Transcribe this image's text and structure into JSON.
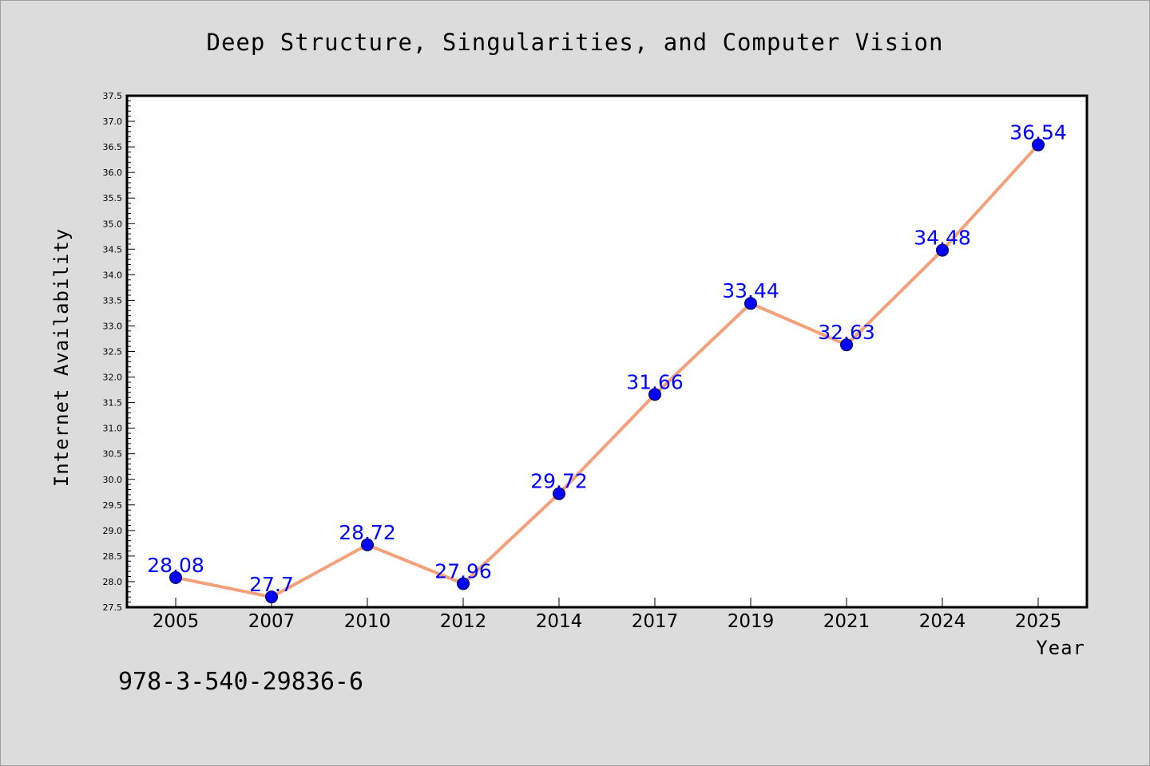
{
  "chart_data": {
    "type": "line",
    "title": "Deep Structure, Singularities, and Computer Vision",
    "xlabel": "Year",
    "ylabel": "Internet Availability",
    "categories": [
      "2005",
      "2007",
      "2010",
      "2012",
      "2014",
      "2017",
      "2019",
      "2021",
      "2024",
      "2025"
    ],
    "series": [
      {
        "values": [
          28.08,
          27.7,
          28.72,
          27.96,
          29.72,
          31.66,
          33.44,
          32.63,
          34.48,
          36.54
        ]
      }
    ],
    "data_labels": [
      "28.08",
      "27.7",
      "28.72",
      "27.96",
      "29.72",
      "31.66",
      "33.44",
      "32.63",
      "34.48",
      "36.54"
    ],
    "ylim": [
      27.5,
      37.5
    ],
    "ytick_labels": [
      "27.5",
      "28.0",
      "28.5",
      "29.0",
      "29.5",
      "30.0",
      "30.5",
      "31.0",
      "31.5",
      "32.0",
      "32.5",
      "33.0",
      "33.5",
      "34.0",
      "34.5",
      "35.0",
      "35.5",
      "36.0",
      "36.5",
      "37.0",
      "37.5"
    ],
    "grid": false,
    "legend": "none",
    "colors": {
      "line": "#f4a07a",
      "marker": "#0000ff",
      "data_label": "#0000ff",
      "background": "#dcdcdc",
      "plot_background": "#ffffff"
    }
  },
  "annotation": "978-3-540-29836-6"
}
